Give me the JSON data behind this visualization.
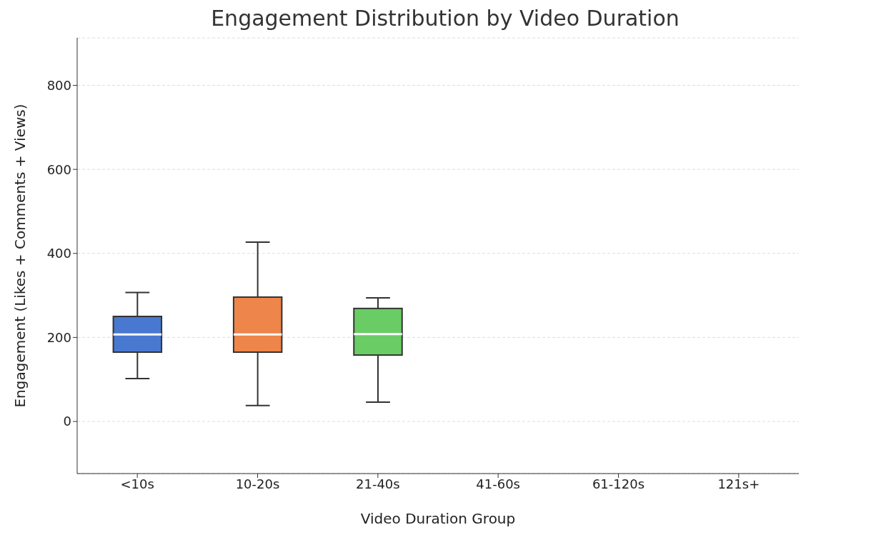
{
  "chart_data": {
    "type": "box",
    "title": "Engagement Distribution by Video Duration",
    "xlabel": "Video Duration Group",
    "ylabel": "Engagement (Likes + Comments + Views)",
    "categories": [
      "<10s",
      "10-20s",
      "21-40s",
      "41-60s",
      "61-120s",
      "121s+"
    ],
    "boxes": [
      {
        "low": 102,
        "q1": 165,
        "median": 207,
        "q3": 250,
        "high": 307
      },
      {
        "low": 38,
        "q1": 165,
        "median": 207,
        "q3": 296,
        "high": 427
      },
      {
        "low": 46,
        "q1": 158,
        "median": 208,
        "q3": 269,
        "high": 294
      },
      null,
      null,
      null
    ],
    "colors": [
      "#4878d0",
      "#ee854a",
      "#6acc64",
      null,
      null,
      null
    ],
    "ylim": [
      -124,
      913
    ],
    "yticks": [
      0,
      200,
      400,
      600,
      800
    ],
    "grid": "y"
  }
}
